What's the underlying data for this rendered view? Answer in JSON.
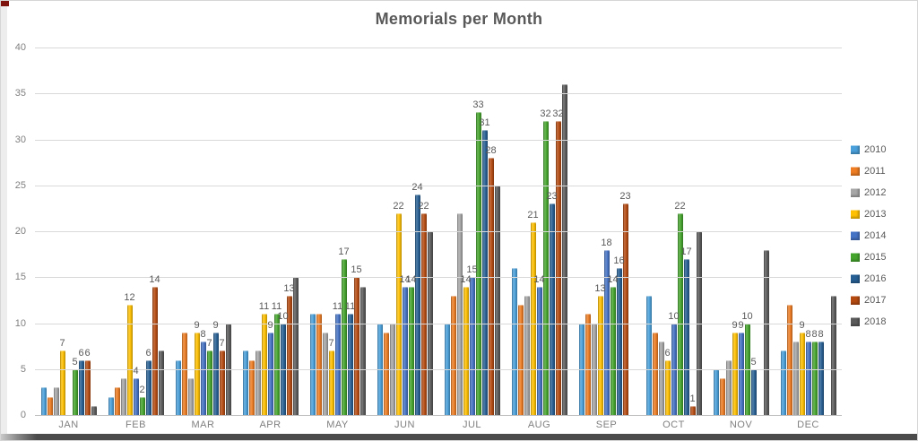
{
  "chart_data": {
    "type": "bar",
    "title": "Memorials per Month",
    "categories": [
      "JAN",
      "FEB",
      "MAR",
      "APR",
      "MAY",
      "JUN",
      "JUL",
      "AUG",
      "SEP",
      "OCT",
      "NOV",
      "DEC"
    ],
    "series": [
      {
        "name": "2010",
        "color": "#4AA0DB",
        "show_labels": false,
        "values": [
          3,
          2,
          6,
          7,
          11,
          10,
          10,
          16,
          10,
          13,
          5,
          7
        ]
      },
      {
        "name": "2011",
        "color": "#EE7D23",
        "show_labels": false,
        "values": [
          2,
          3,
          9,
          6,
          11,
          9,
          13,
          12,
          11,
          9,
          4,
          12
        ]
      },
      {
        "name": "2012",
        "color": "#A6A6A6",
        "show_labels": false,
        "values": [
          3,
          4,
          4,
          7,
          9,
          10,
          22,
          13,
          10,
          8,
          6,
          8
        ]
      },
      {
        "name": "2013",
        "color": "#FFC000",
        "show_labels": true,
        "values": [
          7,
          12,
          9,
          11,
          7,
          22,
          14,
          21,
          13,
          6,
          9,
          9
        ]
      },
      {
        "name": "2014",
        "color": "#4472C4",
        "show_labels": true,
        "values": [
          0,
          4,
          8,
          9,
          11,
          14,
          15,
          14,
          18,
          10,
          9,
          8
        ]
      },
      {
        "name": "2015",
        "color": "#44A52C",
        "show_labels": true,
        "values": [
          5,
          2,
          7,
          11,
          17,
          14,
          33,
          32,
          14,
          22,
          10,
          8
        ]
      },
      {
        "name": "2016",
        "color": "#265F94",
        "show_labels": true,
        "values": [
          6,
          6,
          9,
          10,
          11,
          24,
          31,
          23,
          16,
          17,
          5,
          8
        ]
      },
      {
        "name": "2017",
        "color": "#B54A10",
        "show_labels": true,
        "values": [
          6,
          14,
          7,
          13,
          15,
          22,
          28,
          32,
          23,
          1,
          0,
          0
        ]
      },
      {
        "name": "2018",
        "color": "#5A5A5A",
        "show_labels": false,
        "values": [
          1,
          7,
          10,
          15,
          14,
          20,
          25,
          36,
          0,
          20,
          18,
          13
        ]
      }
    ],
    "ylim": [
      0,
      40
    ],
    "y_ticks": [
      "0",
      "5",
      "10",
      "15",
      "20",
      "25",
      "30",
      "35",
      "40"
    ],
    "grid": true,
    "legend_position": "right",
    "data_label_series": [
      "2013",
      "2014",
      "2015",
      "2016",
      "2017"
    ]
  }
}
